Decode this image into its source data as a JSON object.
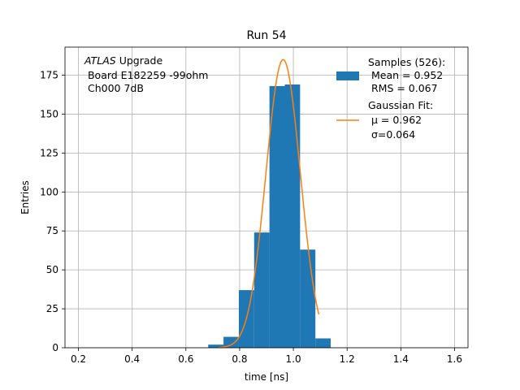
{
  "chart_data": {
    "type": "bar",
    "title": "Run 54",
    "xlabel": "time [ns]",
    "ylabel": "Entries",
    "xlim": [
      0.15,
      1.65
    ],
    "ylim": [
      0,
      193
    ],
    "grid": true,
    "legend_position": "top-right",
    "x_ticks": [
      0.2,
      0.4,
      0.6,
      0.8,
      1.0,
      1.2,
      1.4,
      1.6
    ],
    "y_ticks": [
      0,
      25,
      50,
      75,
      100,
      125,
      150,
      175
    ],
    "x_tick_labels": [
      "0.2",
      "0.4",
      "0.6",
      "0.8",
      "1.0",
      "1.2",
      "1.4",
      "1.6"
    ],
    "y_tick_labels": [
      "0",
      "25",
      "50",
      "75",
      "100",
      "125",
      "150",
      "175"
    ],
    "histogram": {
      "bin_edges": [
        0.683,
        0.74,
        0.797,
        0.854,
        0.911,
        0.968,
        1.025,
        1.082,
        1.139
      ],
      "counts": [
        2,
        7,
        37,
        74,
        168,
        169,
        63,
        6
      ],
      "color": "#1f77b4"
    },
    "gaussian_fit": {
      "mu": 0.962,
      "sigma": 0.064,
      "amplitude": 185,
      "x_range": [
        0.72,
        1.095
      ],
      "color": "#ff7f0e"
    },
    "legend": {
      "samples_lines": [
        "Samples (526):",
        " Mean = 0.952",
        " RMS = 0.067"
      ],
      "fit_lines": [
        "Gaussian Fit:",
        " μ = 0.962",
        " σ=0.064"
      ]
    },
    "annotation": {
      "atlas": "ATLAS",
      "upgrade": " Upgrade",
      "line2": " Board E182259 -99ohm",
      "line3": " Ch000 7dB"
    }
  }
}
